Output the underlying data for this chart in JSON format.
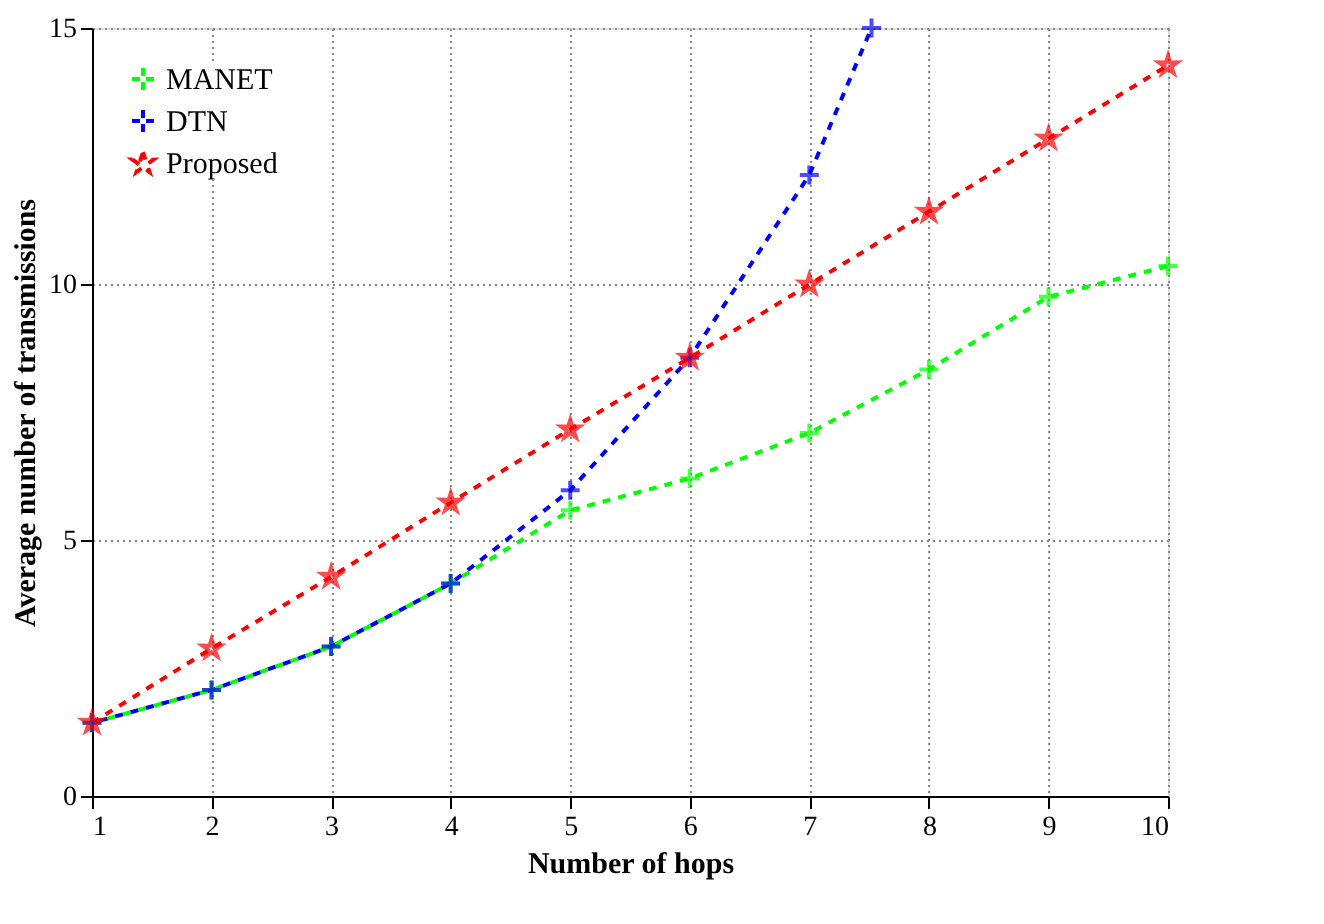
{
  "chart_data": {
    "type": "line",
    "xlabel": "Number of hops",
    "ylabel": "Average number of transmissions",
    "x": [
      1,
      2,
      3,
      4,
      5,
      6,
      7,
      8,
      9,
      10
    ],
    "series": [
      {
        "name": "MANET",
        "color": "#00ff00",
        "marker": "cross",
        "values": [
          1.43,
          2.07,
          2.92,
          4.15,
          5.58,
          6.2,
          7.09,
          8.33,
          9.75,
          10.35
        ]
      },
      {
        "name": "DTN",
        "color": "#0000ff",
        "marker": "cross",
        "x": [
          1,
          2,
          3,
          4,
          5,
          6,
          7,
          7.52
        ],
        "values": [
          1.43,
          2.07,
          2.92,
          4.15,
          5.97,
          8.56,
          12.13,
          15
        ]
      },
      {
        "name": "Proposed",
        "color": "#ff0000",
        "marker": "star",
        "values": [
          1.43,
          2.88,
          4.28,
          5.73,
          7.16,
          8.56,
          9.99,
          11.41,
          12.84,
          14.27
        ]
      }
    ],
    "xlim": [
      1,
      10
    ],
    "xticks": [
      1,
      2,
      3,
      4,
      5,
      6,
      7,
      8,
      9,
      10
    ],
    "ylim": [
      0,
      15
    ],
    "yticks": [
      0,
      5,
      10,
      15
    ],
    "grid": true,
    "legend": "top left",
    "line_style": "dashed"
  }
}
